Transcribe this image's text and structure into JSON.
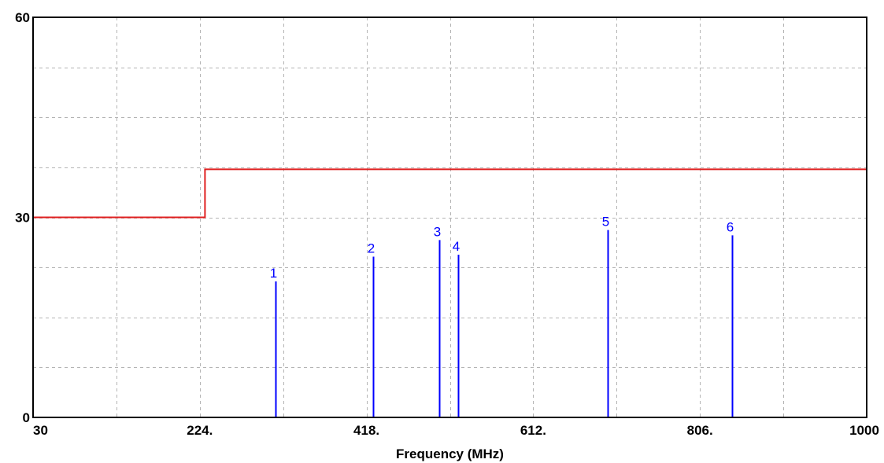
{
  "chart_data": {
    "type": "line",
    "xlabel": "Frequency (MHz)",
    "ylabel": "",
    "xlim": [
      30,
      1000
    ],
    "ylim": [
      0,
      60
    ],
    "x_tick_values": [
      30,
      224,
      418,
      612,
      806,
      1000
    ],
    "x_tick_labels": [
      "30",
      "224.",
      "418.",
      "612.",
      "806.",
      "1000"
    ],
    "y_tick_values": [
      0,
      30,
      60
    ],
    "y_tick_labels": [
      "0",
      "30",
      "60"
    ],
    "grid": true,
    "x_grid_values": [
      127,
      224,
      321,
      418,
      515,
      612,
      709,
      806,
      903
    ],
    "y_grid_values": [
      7.5,
      15,
      22.5,
      37.5,
      45,
      52.5
    ],
    "limit_line": {
      "color": "#e02020",
      "points": [
        [
          30,
          30
        ],
        [
          230,
          30
        ],
        [
          230,
          37.2
        ],
        [
          1000,
          37.2
        ]
      ]
    },
    "markers": {
      "color": "#0000ff",
      "points": [
        {
          "label": "1",
          "x": 312,
          "y": 20.4
        },
        {
          "label": "2",
          "x": 426,
          "y": 24.1
        },
        {
          "label": "3",
          "x": 503,
          "y": 26.6
        },
        {
          "label": "4",
          "x": 525,
          "y": 24.4
        },
        {
          "label": "5",
          "x": 699,
          "y": 28.1
        },
        {
          "label": "6",
          "x": 843,
          "y": 27.3
        }
      ]
    }
  }
}
